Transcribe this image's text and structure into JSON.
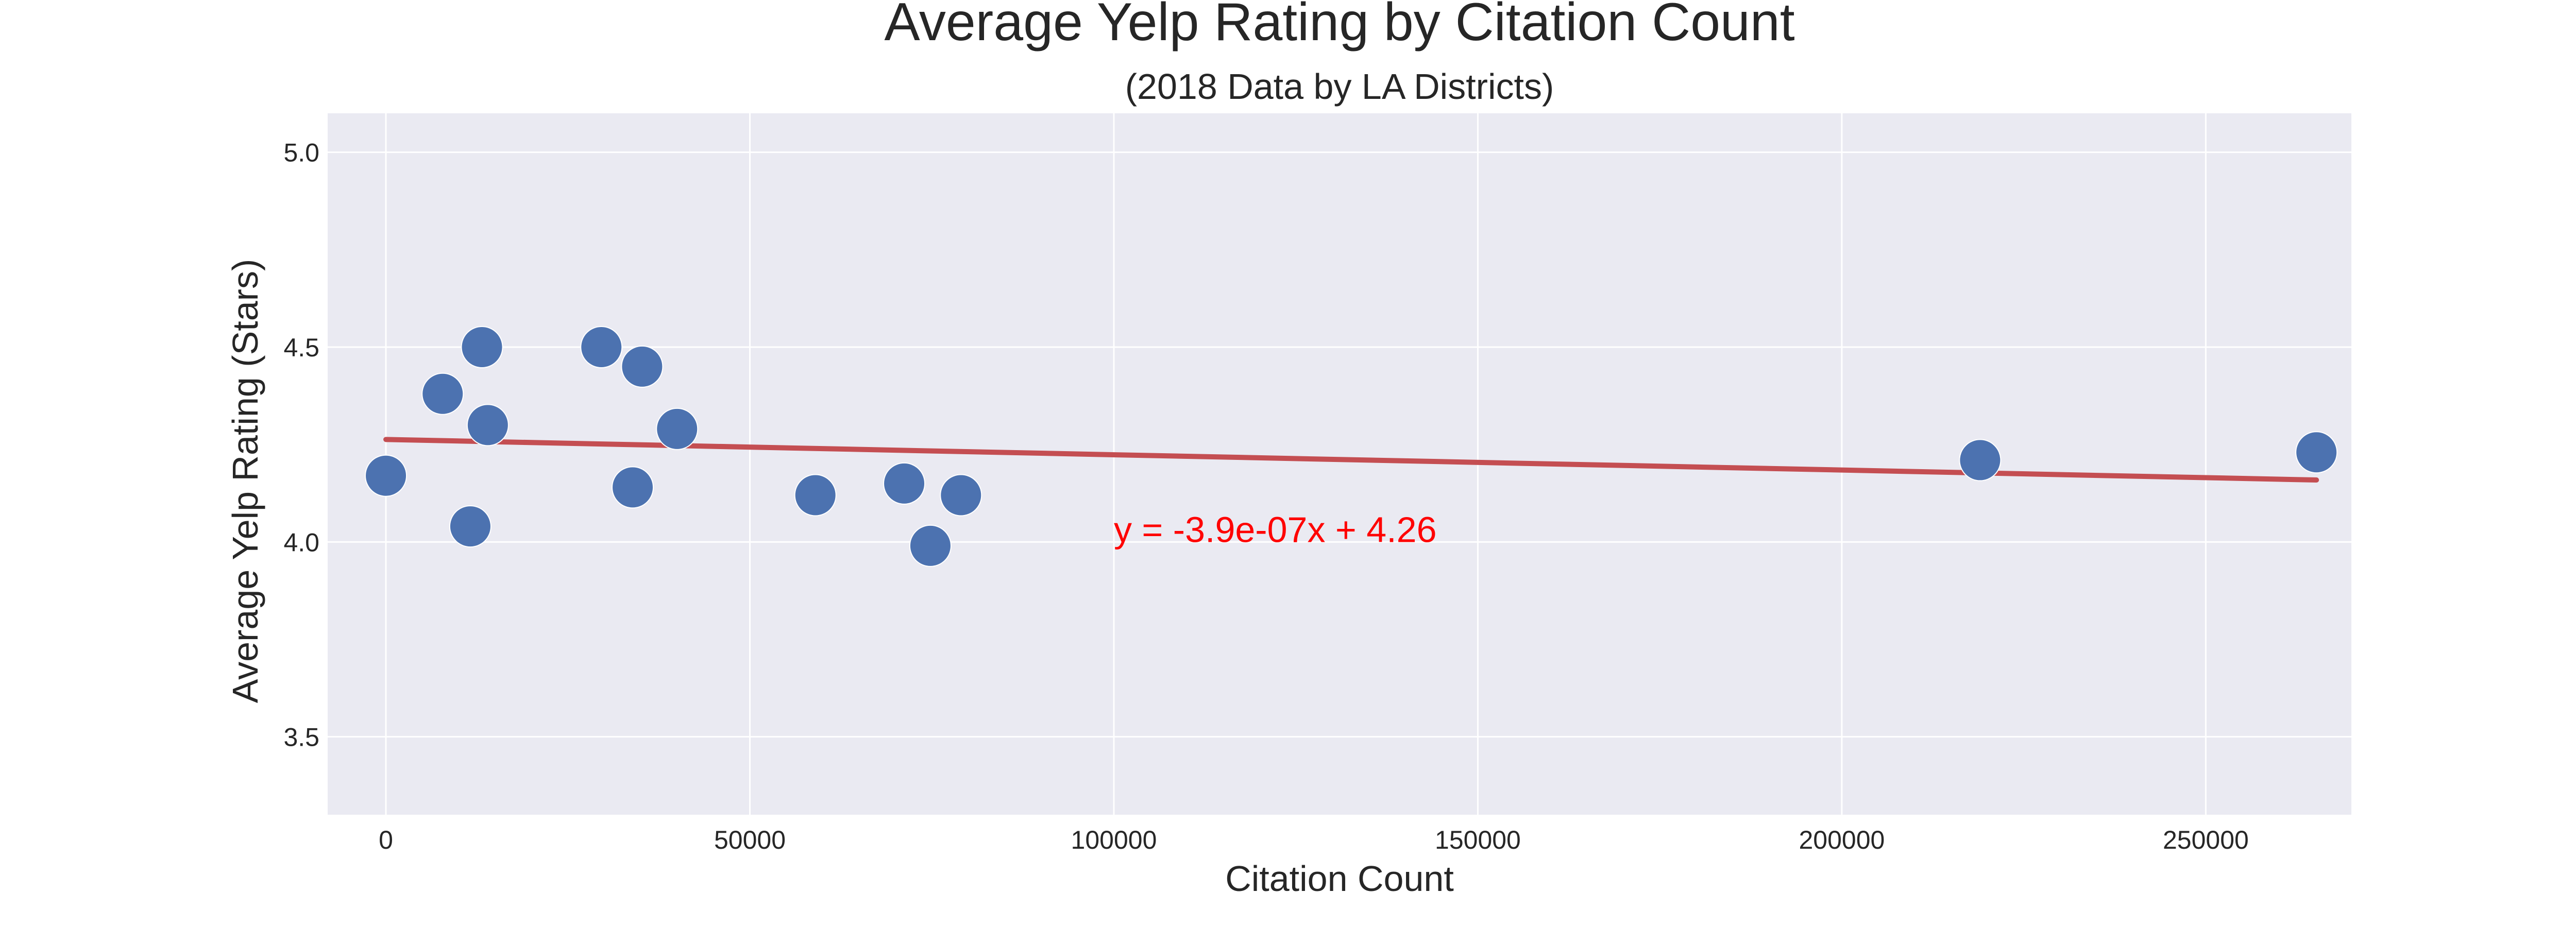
{
  "chart_data": {
    "type": "scatter",
    "title": "Average Yelp Rating by Citation Count",
    "subtitle": "(2018 Data by LA Districts)",
    "xlabel": "Citation Count",
    "ylabel": "Average Yelp Rating (Stars)",
    "xlim": [
      -8000,
      270000
    ],
    "ylim": [
      3.3,
      5.1
    ],
    "xticks": [
      0,
      50000,
      100000,
      150000,
      200000,
      250000
    ],
    "xtick_labels": [
      "0",
      "50000",
      "100000",
      "150000",
      "200000",
      "250000"
    ],
    "yticks": [
      3.5,
      4.0,
      4.5,
      5.0
    ],
    "ytick_labels": [
      "3.5",
      "4.0",
      "4.5",
      "5.0"
    ],
    "grid": true,
    "series": [
      {
        "type": "scatter",
        "color": "#4c72b0",
        "points": [
          {
            "x": 0,
            "y": 4.17
          },
          {
            "x": 7800,
            "y": 4.38
          },
          {
            "x": 11600,
            "y": 4.04
          },
          {
            "x": 13200,
            "y": 4.5
          },
          {
            "x": 14000,
            "y": 4.3
          },
          {
            "x": 29600,
            "y": 4.5
          },
          {
            "x": 33900,
            "y": 4.14
          },
          {
            "x": 35200,
            "y": 4.45
          },
          {
            "x": 40000,
            "y": 4.29
          },
          {
            "x": 59000,
            "y": 4.12
          },
          {
            "x": 71200,
            "y": 4.15
          },
          {
            "x": 74800,
            "y": 3.99
          },
          {
            "x": 79000,
            "y": 4.12
          },
          {
            "x": 219000,
            "y": 4.21
          },
          {
            "x": 265200,
            "y": 4.23
          }
        ]
      },
      {
        "type": "line",
        "color": "#c44e52",
        "x": [
          0,
          265200
        ],
        "y": [
          4.263,
          4.159
        ]
      }
    ],
    "annotation": {
      "text": "y = -3.9e-07x + 4.26",
      "x": 100000,
      "y": 4.0,
      "color": "#ff0000"
    },
    "colors": {
      "plot_background": "#eaeaf2",
      "grid": "#ffffff",
      "text": "#262626"
    }
  }
}
